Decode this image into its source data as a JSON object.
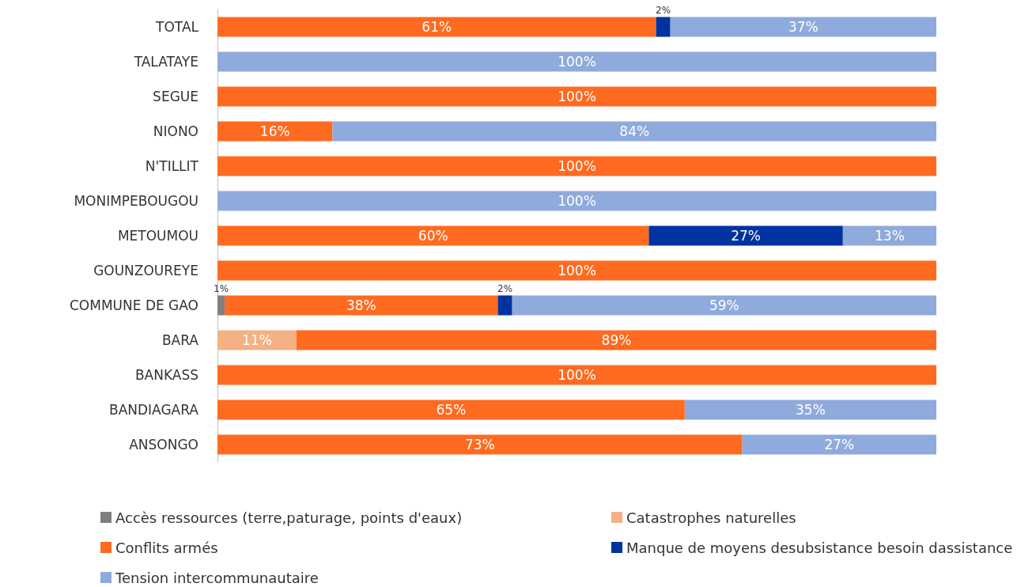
{
  "chart_data": {
    "type": "bar",
    "orientation": "horizontal",
    "stacked": true,
    "legend": "bottom",
    "grid": false,
    "categories": [
      "TOTAL",
      "TALATAYE",
      "SEGUE",
      "NIONO",
      "N'TILLIT",
      "MONIMPEBOUGOU",
      "METOUMOU",
      "GOUNZOUREYE",
      "COMMUNE DE GAO",
      "BARA",
      "BANKASS",
      "BANDIAGARA",
      "ANSONGO"
    ],
    "series": [
      {
        "name": "Accès ressources (terre,paturage, points d'eaux)",
        "color": "#7f7f7f",
        "values": [
          null,
          null,
          null,
          null,
          null,
          null,
          null,
          null,
          1,
          null,
          null,
          null,
          null
        ],
        "value_labels": [
          null,
          null,
          null,
          null,
          null,
          null,
          null,
          null,
          "1%",
          null,
          null,
          null,
          null
        ]
      },
      {
        "name": "Catastrophes naturelles",
        "color": "#f4b183",
        "values": [
          null,
          null,
          null,
          null,
          null,
          null,
          null,
          null,
          null,
          11,
          null,
          null,
          null
        ],
        "value_labels": [
          null,
          null,
          null,
          null,
          null,
          null,
          null,
          null,
          null,
          "11%",
          null,
          null,
          null
        ]
      },
      {
        "name": "Conflits armés",
        "color": "#ff6a21",
        "values": [
          61,
          null,
          100,
          16,
          100,
          null,
          60,
          100,
          38,
          89,
          100,
          65,
          73
        ],
        "value_labels": [
          "61%",
          null,
          "100%",
          "16%",
          "100%",
          null,
          "60%",
          "100%",
          "38%",
          "89%",
          "100%",
          "65%",
          "73%"
        ]
      },
      {
        "name": "Manque de moyens desubsistance besoin dassistance",
        "color": "#0033a0",
        "values": [
          2,
          null,
          null,
          null,
          null,
          null,
          27,
          null,
          2,
          null,
          null,
          null,
          null
        ],
        "value_labels": [
          "2%",
          null,
          null,
          null,
          null,
          null,
          "27%",
          null,
          "2%",
          null,
          null,
          null,
          null
        ]
      },
      {
        "name": "Tension intercommunautaire",
        "color": "#8faadc",
        "values": [
          37,
          100,
          null,
          84,
          null,
          100,
          13,
          null,
          59,
          null,
          null,
          35,
          27
        ],
        "value_labels": [
          "37%",
          "100%",
          null,
          "84%",
          null,
          "100%",
          "13%",
          null,
          "59%",
          null,
          null,
          "35%",
          "27%"
        ]
      }
    ]
  }
}
